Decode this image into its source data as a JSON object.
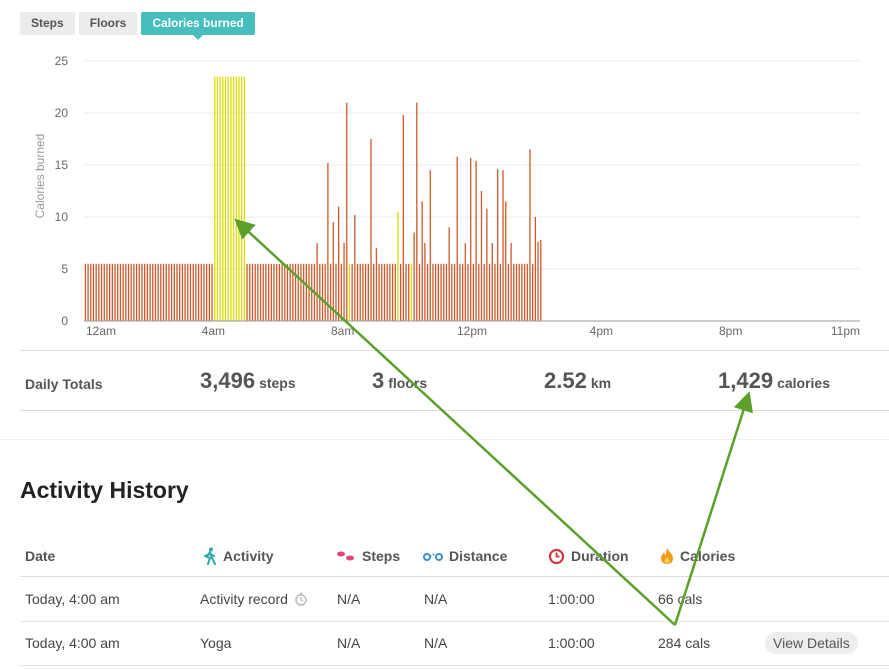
{
  "tabs": [
    "Steps",
    "Floors",
    "Calories burned"
  ],
  "active_tab": 2,
  "colors": {
    "accent": "#47bdbd",
    "bar": "#cc5a2a",
    "bar_highlight": "#dddd00",
    "annotation_arrow": "#5ca02c"
  },
  "chart_data": {
    "type": "bar",
    "ylabel": "Calories burned",
    "xlabel": "",
    "ylim": [
      0,
      25
    ],
    "yticks": [
      "0",
      "5",
      "10",
      "15",
      "20",
      "25"
    ],
    "xticks": [
      "12am",
      "4am",
      "8am",
      "12pm",
      "4pm",
      "8pm",
      "11pm"
    ],
    "grid": true,
    "interval_minutes": 5,
    "series": [
      {
        "values": [
          5.5,
          5.5,
          5.5,
          5.5,
          5.5,
          5.5,
          5.5,
          5.5,
          5.5,
          5.5,
          5.5,
          5.5,
          5.5,
          5.5,
          5.5,
          5.5,
          5.5,
          5.5,
          5.5,
          5.5,
          5.5,
          5.5,
          5.5,
          5.5,
          5.5,
          5.5,
          5.5,
          5.5,
          5.5,
          5.5,
          5.5,
          5.5,
          5.5,
          5.5,
          5.5,
          5.5,
          5.5,
          5.5,
          5.5,
          5.5,
          5.5,
          5.5,
          5.5,
          5.5,
          5.5,
          5.5,
          5.5,
          5.5,
          23.5,
          23.5,
          23.5,
          23.5,
          23.5,
          23.5,
          23.5,
          23.5,
          23.5,
          23.5,
          23.5,
          23.5,
          5.5,
          5.5,
          5.5,
          5.5,
          5.5,
          5.5,
          5.5,
          5.5,
          5.5,
          5.5,
          5.5,
          5.5,
          5.5,
          5.5,
          5.5,
          5.5,
          5.5,
          5.5,
          5.5,
          5.5,
          5.5,
          5.5,
          5.5,
          5.5,
          5.5,
          5.5,
          7.5,
          5.5,
          5.5,
          5.5,
          15.2,
          5.5,
          9.5,
          5.5,
          11,
          5.5,
          7.5,
          21,
          5.5,
          5.5,
          10.2,
          5.5,
          5.5,
          5.5,
          5.5,
          5.5,
          17.5,
          5.5,
          7,
          5.5,
          5.5,
          5.5,
          5.5,
          5.5,
          5.5,
          5.5,
          10.5,
          5.5,
          19.8,
          5.5,
          5.5,
          5.5,
          8.5,
          21,
          5.5,
          11.5,
          7.5,
          5.5,
          14.5,
          5.5,
          5.5,
          5.5,
          5.5,
          5.5,
          5.5,
          9,
          5.5,
          5.5,
          15.8,
          5.5,
          5.5,
          7.5,
          5.5,
          15.7,
          5.5,
          15.4,
          5.5,
          12.5,
          5.5,
          10.8,
          5.5,
          7.5,
          5.5,
          14.6,
          5.5,
          14.5,
          11.5,
          5.5,
          7.5,
          5.5,
          5.5,
          5.5,
          5.5,
          5.5,
          5.5,
          16.5,
          5.5,
          10,
          7.6,
          7.8
        ]
      }
    ],
    "highlight_ranges": [
      [
        48,
        59
      ],
      [
        98,
        98
      ],
      [
        116,
        116
      ],
      [
        121,
        121
      ]
    ]
  },
  "totals": {
    "label": "Daily Totals",
    "steps": {
      "value": "3,496",
      "unit": "steps"
    },
    "floors": {
      "value": "3",
      "unit": "floors"
    },
    "distance": {
      "value": "2.52",
      "unit": "km"
    },
    "calories": {
      "value": "1,429",
      "unit": "calories"
    }
  },
  "activity_history": {
    "title": "Activity History",
    "columns": {
      "date": "Date",
      "activity": "Activity",
      "steps": "Steps",
      "distance": "Distance",
      "duration": "Duration",
      "calories": "Calories"
    },
    "rows": [
      {
        "date": "Today, 4:00 am",
        "activity": "Activity record",
        "steps": "N/A",
        "distance": "N/A",
        "duration": "1:00:00",
        "calories": "66 cals",
        "action": ""
      },
      {
        "date": "Today, 4:00 am",
        "activity": "Yoga",
        "steps": "N/A",
        "distance": "N/A",
        "duration": "1:00:00",
        "calories": "284 cals",
        "action": "View Details"
      }
    ]
  }
}
